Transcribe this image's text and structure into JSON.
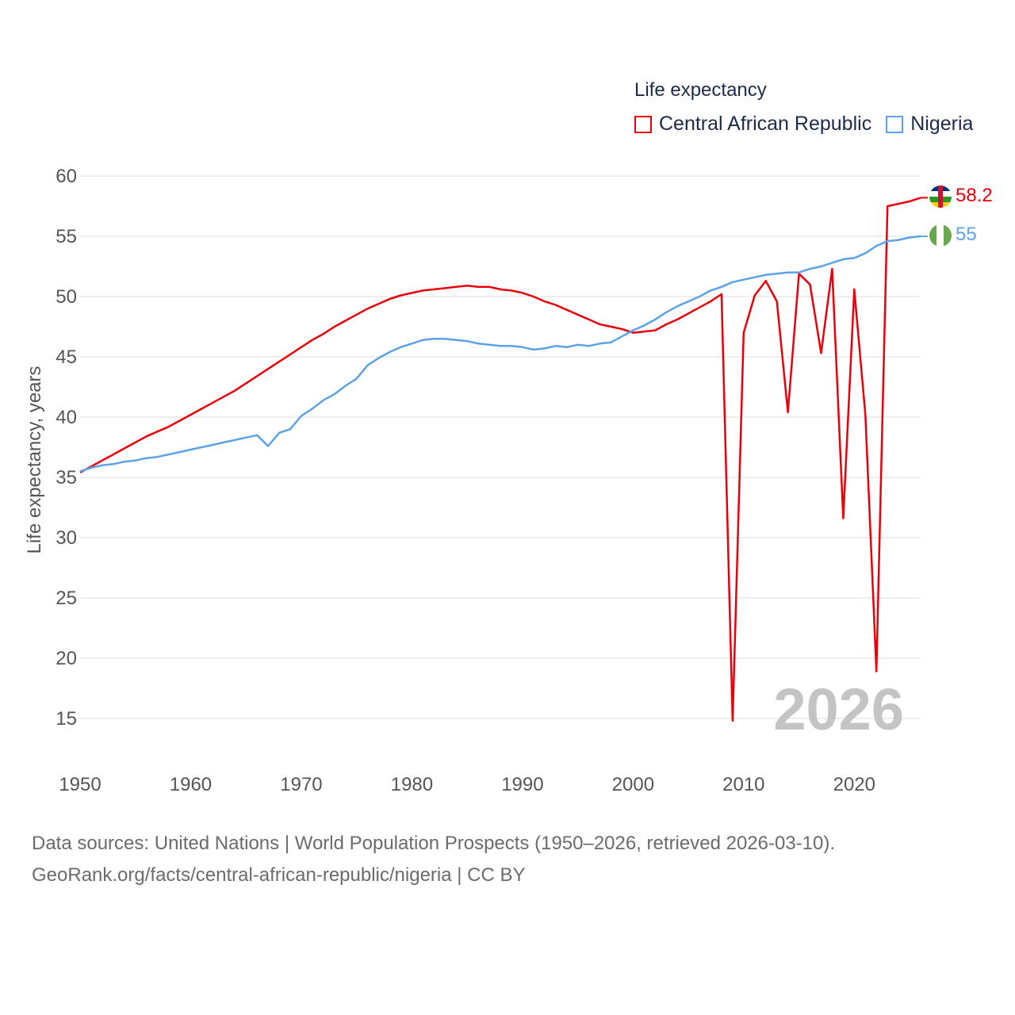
{
  "legend": {
    "title": "Life expectancy",
    "items": [
      {
        "label": "Central African Republic",
        "color": "#e8000b"
      },
      {
        "label": "Nigeria",
        "color": "#5ba3e6"
      }
    ]
  },
  "source": {
    "line1": "Data sources: United Nations | World Population Prospects (1950–2026, retrieved 2026-03-10).",
    "line2": "GeoRank.org/facts/central-african-republic/nigeria | CC BY"
  },
  "chart_data": {
    "type": "line",
    "title": "Life expectancy",
    "ylabel": "Life expectancy, years",
    "xlabel": "",
    "xlim": [
      1950,
      2026
    ],
    "ylim": [
      15,
      60
    ],
    "grid": true,
    "year_watermark": "2026",
    "x_ticks": [
      "1950",
      "1960",
      "1970",
      "1980",
      "1990",
      "2000",
      "2010",
      "2020"
    ],
    "y_ticks": [
      "60",
      "55",
      "50",
      "45",
      "40",
      "35",
      "30",
      "25",
      "20",
      "15"
    ],
    "x": [
      1950,
      1951,
      1952,
      1953,
      1954,
      1955,
      1956,
      1957,
      1958,
      1959,
      1960,
      1961,
      1962,
      1963,
      1964,
      1965,
      1966,
      1967,
      1968,
      1969,
      1970,
      1971,
      1972,
      1973,
      1974,
      1975,
      1976,
      1977,
      1978,
      1979,
      1980,
      1981,
      1982,
      1983,
      1984,
      1985,
      1986,
      1987,
      1988,
      1989,
      1990,
      1991,
      1992,
      1993,
      1994,
      1995,
      1996,
      1997,
      1998,
      1999,
      2000,
      2001,
      2002,
      2003,
      2004,
      2005,
      2006,
      2007,
      2008,
      2009,
      2010,
      2011,
      2012,
      2013,
      2014,
      2015,
      2016,
      2017,
      2018,
      2019,
      2020,
      2021,
      2022,
      2023,
      2024,
      2025,
      2026
    ],
    "series": [
      {
        "name": "Central African Republic",
        "color": "#e8000b",
        "end_label": "58.2",
        "values": [
          35.4,
          35.9,
          36.4,
          36.9,
          37.4,
          37.9,
          38.4,
          38.8,
          39.2,
          39.7,
          40.2,
          40.7,
          41.2,
          41.7,
          42.2,
          42.8,
          43.4,
          44.0,
          44.6,
          45.2,
          45.8,
          46.4,
          46.9,
          47.5,
          48.0,
          48.5,
          49.0,
          49.4,
          49.8,
          50.1,
          50.3,
          50.5,
          50.6,
          50.7,
          50.8,
          50.9,
          50.8,
          50.8,
          50.6,
          50.5,
          50.3,
          50.0,
          49.6,
          49.3,
          48.9,
          48.5,
          48.1,
          47.7,
          47.5,
          47.3,
          47.0,
          47.1,
          47.2,
          47.7,
          48.1,
          48.6,
          49.1,
          49.6,
          50.2,
          14.8,
          47.0,
          50.1,
          51.3,
          49.6,
          40.4,
          51.9,
          51.0,
          45.3,
          52.3,
          31.6,
          50.6,
          40.2,
          18.9,
          57.5,
          57.7,
          57.9,
          58.2
        ]
      },
      {
        "name": "Nigeria",
        "color": "#5ba3e6",
        "end_label": "55",
        "values": [
          35.5,
          35.8,
          36.0,
          36.1,
          36.3,
          36.4,
          36.6,
          36.7,
          36.9,
          37.1,
          37.3,
          37.5,
          37.7,
          37.9,
          38.1,
          38.3,
          38.5,
          37.6,
          38.7,
          39.0,
          40.1,
          40.7,
          41.4,
          41.9,
          42.6,
          43.2,
          44.3,
          44.9,
          45.4,
          45.8,
          46.1,
          46.4,
          46.5,
          46.5,
          46.4,
          46.3,
          46.1,
          46.0,
          45.9,
          45.9,
          45.8,
          45.6,
          45.7,
          45.9,
          45.8,
          46.0,
          45.9,
          46.1,
          46.2,
          46.7,
          47.2,
          47.6,
          48.1,
          48.7,
          49.2,
          49.6,
          50.0,
          50.5,
          50.8,
          51.2,
          51.4,
          51.6,
          51.8,
          51.9,
          52.0,
          52.0,
          52.3,
          52.5,
          52.8,
          53.1,
          53.2,
          53.6,
          54.2,
          54.6,
          54.7,
          54.9,
          55.0
        ]
      }
    ]
  }
}
